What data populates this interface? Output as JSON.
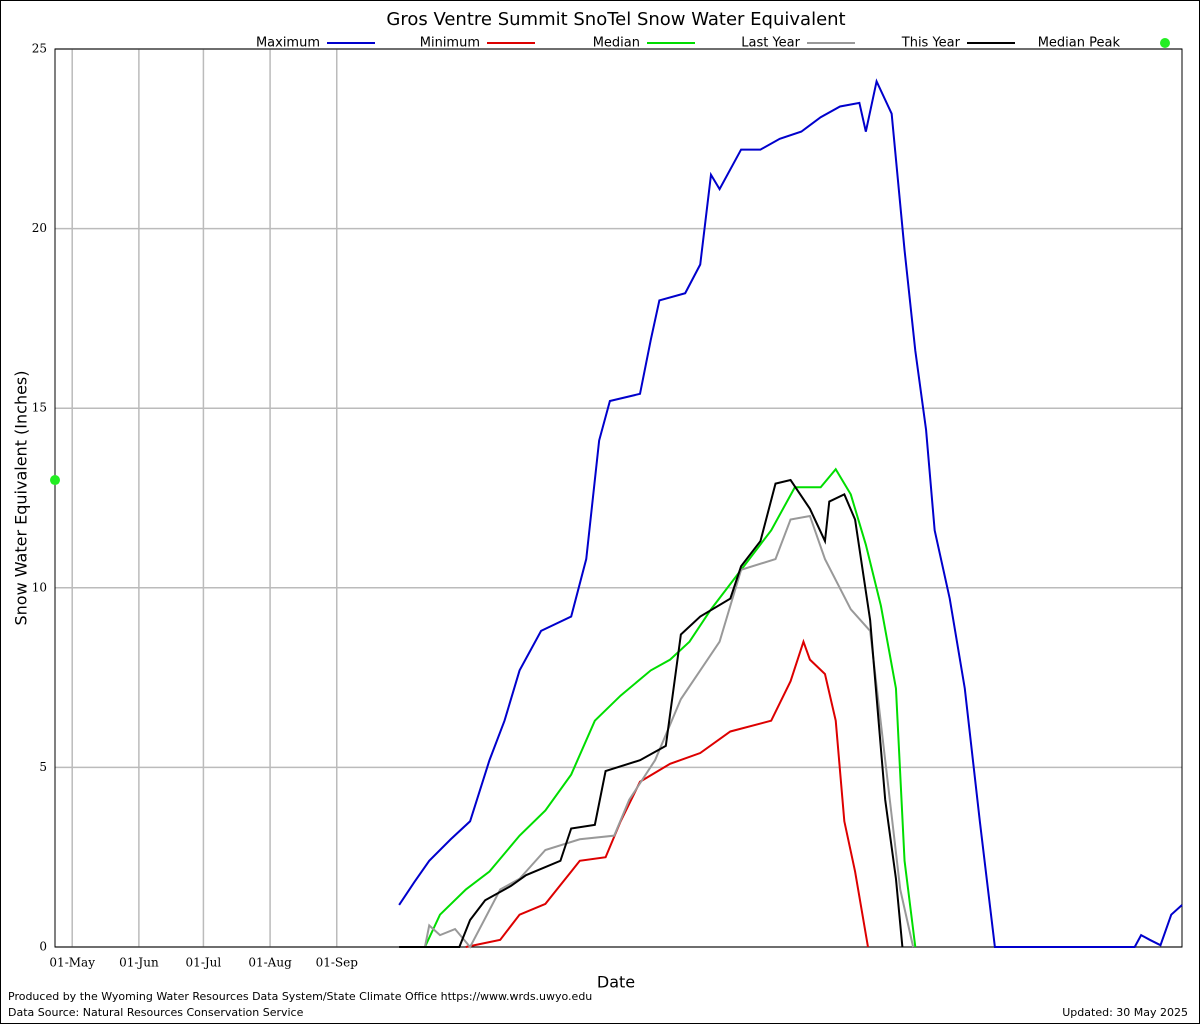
{
  "chart_data": {
    "type": "line",
    "title": "Gros Ventre Summit SnoTel Snow Water Equivalent",
    "x_label": "Date",
    "y_label": "Snow Water Equivalent (Inches)",
    "xlim": [
      0,
      524
    ],
    "xticks": [
      {
        "value": 8,
        "label": "01-May"
      },
      {
        "value": 39,
        "label": "01-Jun"
      },
      {
        "value": 69,
        "label": "01-Jul"
      },
      {
        "value": 100,
        "label": "01-Aug"
      },
      {
        "value": 131,
        "label": "01-Sep"
      }
    ],
    "ylim": [
      0,
      25
    ],
    "yticks": [
      0,
      5,
      10,
      15,
      20,
      25
    ],
    "grid": true,
    "series": [
      {
        "name": "Maximum",
        "color": "#0000cc",
        "x": [
          160,
          167,
          174,
          184,
          193,
          202,
          209,
          216,
          226,
          240,
          247,
          253,
          258,
          272,
          277,
          281,
          293,
          300,
          305,
          309,
          319,
          328,
          337,
          347,
          356,
          365,
          374,
          377,
          382,
          389,
          395,
          400,
          405,
          409,
          416,
          423,
          430,
          436,
          437,
          502,
          505,
          509,
          514,
          519,
          524
        ],
        "values": [
          1.17,
          1.8,
          2.4,
          3.0,
          3.5,
          5.2,
          6.3,
          7.7,
          8.8,
          9.2,
          10.8,
          14.1,
          15.2,
          15.4,
          16.9,
          18.0,
          18.2,
          19.0,
          21.5,
          21.1,
          22.2,
          22.2,
          22.5,
          22.7,
          23.1,
          23.4,
          23.5,
          22.7,
          24.1,
          23.2,
          19.4,
          16.6,
          14.4,
          11.6,
          9.7,
          7.2,
          3.5,
          0.5,
          0,
          0,
          0.33,
          0.2,
          0.05,
          0.9,
          1.17
        ]
      },
      {
        "name": "Minimum",
        "color": "#dd0000",
        "x": [
          191,
          207,
          216,
          228,
          240,
          244,
          256,
          263,
          272,
          286,
          300,
          314,
          333,
          342,
          348,
          351,
          358,
          363,
          367,
          372,
          378
        ],
        "values": [
          0,
          0.2,
          0.9,
          1.2,
          2.1,
          2.4,
          2.5,
          3.5,
          4.6,
          5.1,
          5.4,
          6.0,
          6.3,
          7.4,
          8.5,
          8.0,
          7.6,
          6.3,
          3.5,
          2.1,
          0
        ]
      },
      {
        "name": "Median",
        "color": "#00dd00",
        "x": [
          172,
          179,
          191,
          202,
          216,
          228,
          240,
          251,
          263,
          277,
          286,
          295,
          305,
          319,
          333,
          344,
          356,
          363,
          370,
          377,
          384,
          391,
          395,
          400
        ],
        "values": [
          0,
          0.9,
          1.6,
          2.1,
          3.1,
          3.8,
          4.8,
          6.3,
          7.0,
          7.7,
          8.0,
          8.5,
          9.4,
          10.5,
          11.6,
          12.8,
          12.8,
          13.3,
          12.6,
          11.2,
          9.5,
          7.2,
          2.4,
          0
        ]
      },
      {
        "name": "Last Year",
        "color": "#999999",
        "x": [
          172,
          174,
          179,
          186,
          193,
          207,
          216,
          228,
          244,
          260,
          267,
          279,
          291,
          300,
          309,
          319,
          335,
          342,
          351,
          358,
          370,
          379,
          386,
          393,
          399
        ],
        "values": [
          0,
          0.6,
          0.33,
          0.5,
          0,
          1.6,
          1.9,
          2.7,
          3.0,
          3.1,
          4.1,
          5.2,
          6.9,
          7.7,
          8.5,
          10.5,
          10.8,
          11.9,
          12.0,
          10.8,
          9.4,
          8.8,
          5.2,
          1.6,
          0
        ]
      },
      {
        "name": "This Year",
        "color": "#000000",
        "x": [
          160,
          188,
          193,
          200,
          212,
          219,
          235,
          240,
          251,
          256,
          272,
          284,
          291,
          300,
          314,
          319,
          328,
          335,
          342,
          351,
          358,
          360,
          367,
          372,
          379,
          386,
          391,
          394
        ],
        "values": [
          0,
          0,
          0.75,
          1.3,
          1.7,
          2.0,
          2.4,
          3.3,
          3.4,
          4.9,
          5.2,
          5.6,
          8.7,
          9.2,
          9.7,
          10.6,
          11.3,
          12.9,
          13.0,
          12.2,
          11.3,
          12.4,
          12.6,
          11.9,
          9.1,
          4.1,
          1.9,
          0
        ]
      }
    ],
    "median_peak": {
      "name": "Median Peak",
      "color": "#22ee22",
      "value": 13
    },
    "footer": {
      "produced_by": "Produced by the Wyoming Water Resources Data System/State Climate Office https://www.wrds.uwyo.edu",
      "source": "Data Source: Natural Resources Conservation Service",
      "updated": "Updated: 30 May 2025"
    }
  }
}
